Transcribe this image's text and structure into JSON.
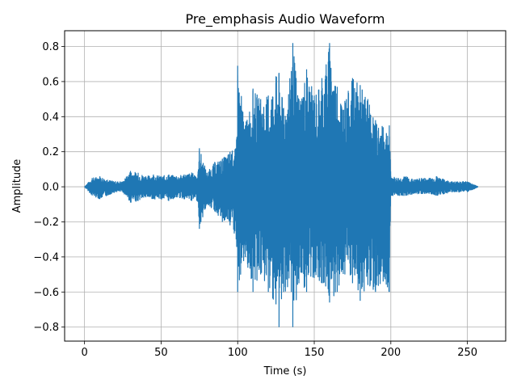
{
  "chart_data": {
    "type": "line",
    "title": "Pre_emphasis Audio Waveform",
    "xlabel": "Time (s)",
    "ylabel": "Amplitude",
    "xlim": [
      -13,
      275
    ],
    "ylim": [
      -0.88,
      0.89
    ],
    "x_ticks": [
      0,
      50,
      100,
      150,
      200,
      250
    ],
    "y_ticks": [
      -0.8,
      -0.6,
      -0.4,
      -0.2,
      0.0,
      0.2,
      0.4,
      0.6,
      0.8
    ],
    "x_tick_labels": [
      "0",
      "50",
      "100",
      "150",
      "200",
      "250"
    ],
    "y_tick_labels": [
      "−0.8",
      "−0.6",
      "−0.4",
      "−0.2",
      "0.0",
      "0.2",
      "0.4",
      "0.6",
      "0.8"
    ],
    "grid": true,
    "line_color": "#1f77b4",
    "series": [
      {
        "x": [
          0,
          5,
          10,
          15,
          20,
          25,
          30,
          35,
          40,
          45,
          50,
          55,
          60,
          65,
          70,
          74,
          75,
          80,
          85,
          90,
          95,
          99,
          100,
          105,
          110,
          115,
          120,
          125,
          127,
          130,
          135,
          136,
          140,
          145,
          150,
          155,
          160,
          165,
          170,
          175,
          180,
          185,
          190,
          195,
          199,
          200,
          205,
          210,
          215,
          220,
          225,
          230,
          235,
          240,
          245,
          250,
          255,
          257
        ],
        "y_upper": [
          0.0,
          0.05,
          0.06,
          0.04,
          0.03,
          0.03,
          0.09,
          0.08,
          0.06,
          0.07,
          0.06,
          0.07,
          0.06,
          0.07,
          0.08,
          0.07,
          0.22,
          0.08,
          0.14,
          0.16,
          0.2,
          0.22,
          0.69,
          0.35,
          0.56,
          0.5,
          0.52,
          0.63,
          0.65,
          0.45,
          0.66,
          0.82,
          0.5,
          0.67,
          0.52,
          0.62,
          0.82,
          0.57,
          0.49,
          0.62,
          0.58,
          0.5,
          0.38,
          0.34,
          0.35,
          0.06,
          0.05,
          0.06,
          0.04,
          0.05,
          0.05,
          0.06,
          0.04,
          0.03,
          0.03,
          0.03,
          0.01,
          0.0
        ],
        "y_lower": [
          0.0,
          -0.05,
          -0.07,
          -0.05,
          -0.03,
          -0.03,
          -0.09,
          -0.08,
          -0.06,
          -0.07,
          -0.07,
          -0.08,
          -0.06,
          -0.07,
          -0.08,
          -0.08,
          -0.24,
          -0.1,
          -0.14,
          -0.2,
          -0.22,
          -0.3,
          -0.6,
          -0.4,
          -0.6,
          -0.5,
          -0.6,
          -0.67,
          -0.8,
          -0.6,
          -0.6,
          -0.8,
          -0.55,
          -0.6,
          -0.52,
          -0.55,
          -0.66,
          -0.6,
          -0.5,
          -0.55,
          -0.65,
          -0.56,
          -0.6,
          -0.54,
          -0.6,
          -0.05,
          -0.05,
          -0.05,
          -0.04,
          -0.04,
          -0.04,
          -0.05,
          -0.04,
          -0.03,
          -0.03,
          -0.03,
          -0.01,
          0.0
        ]
      }
    ]
  }
}
